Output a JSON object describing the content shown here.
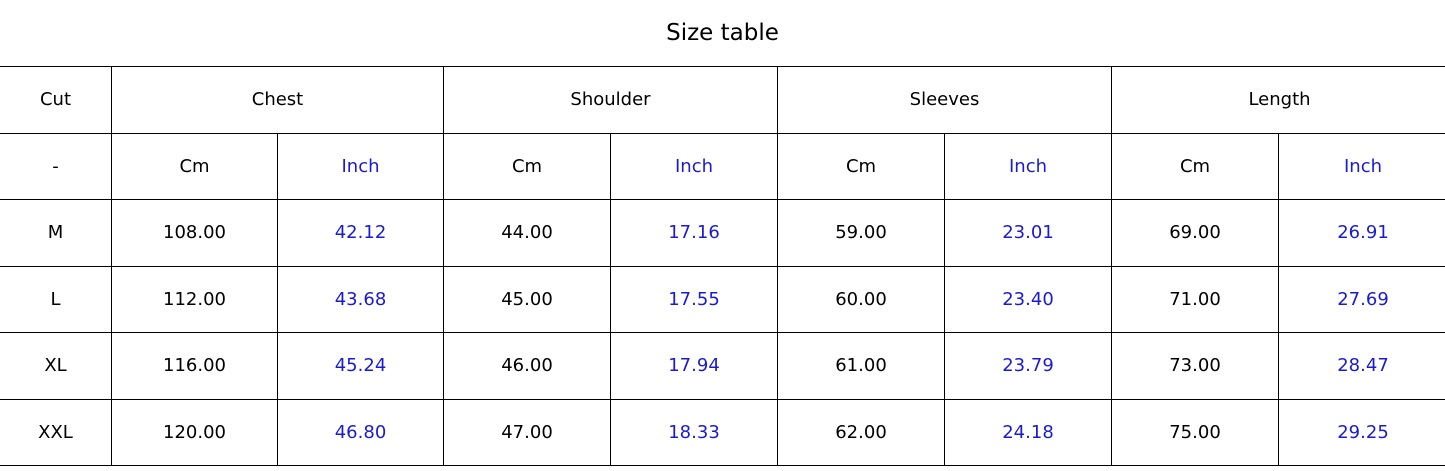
{
  "title": "Size table",
  "inch_color": "#1a1ad6",
  "header": {
    "cut": "Cut",
    "groups": [
      "Chest",
      "Shoulder",
      "Sleeves",
      "Length"
    ],
    "unit_row_label": "-",
    "units": [
      "Cm",
      "Inch"
    ]
  },
  "rows": [
    {
      "cut": "M",
      "values": [
        "108.00",
        "42.12",
        "44.00",
        "17.16",
        "59.00",
        "23.01",
        "69.00",
        "26.91"
      ]
    },
    {
      "cut": "L",
      "values": [
        "112.00",
        "43.68",
        "45.00",
        "17.55",
        "60.00",
        "23.40",
        "71.00",
        "27.69"
      ]
    },
    {
      "cut": "XL",
      "values": [
        "116.00",
        "45.24",
        "46.00",
        "17.94",
        "61.00",
        "23.79",
        "73.00",
        "28.47"
      ]
    },
    {
      "cut": "XXL",
      "values": [
        "120.00",
        "46.80",
        "47.00",
        "18.33",
        "62.00",
        "24.18",
        "75.00",
        "29.25"
      ]
    }
  ]
}
